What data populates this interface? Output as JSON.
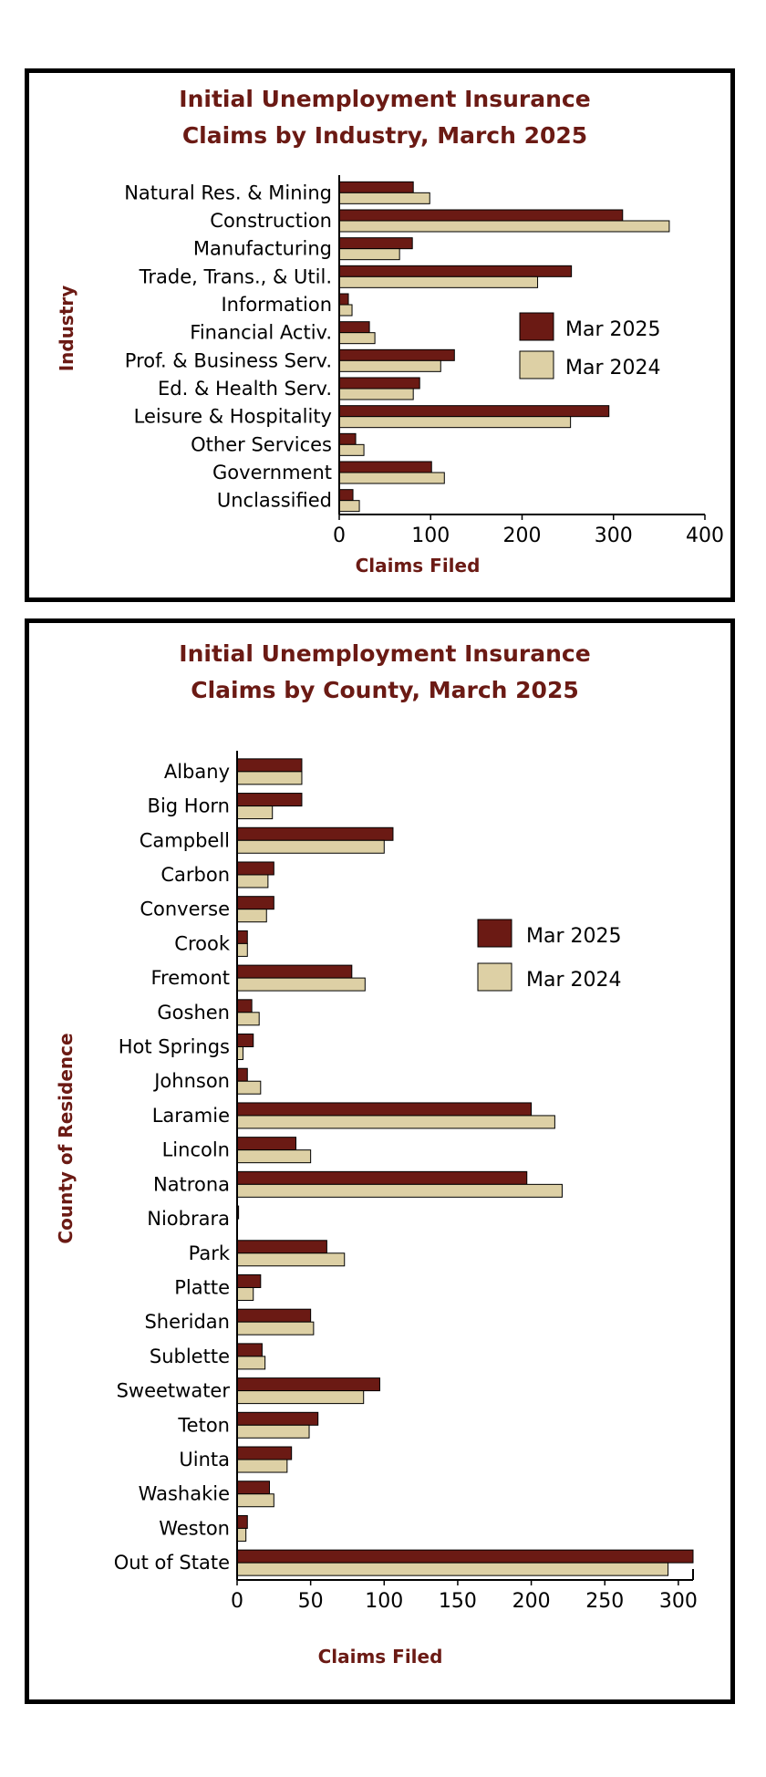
{
  "colors": {
    "mar2025": "#6b1a14",
    "mar2024": "#ddd0a5",
    "title": "#6b1a14",
    "axisTitle": "#6b1a14"
  },
  "chart_data": [
    {
      "type": "bar",
      "orientation": "horizontal",
      "title_lines": [
        "Initial Unemployment Insurance",
        "Claims by Industry, March 2025"
      ],
      "xlabel": "Claims Filed",
      "ylabel": "Industry",
      "xlim": [
        0,
        400
      ],
      "xticks": [
        0,
        100,
        200,
        300,
        400
      ],
      "legend_position": "right",
      "categories": [
        "Natural Res. & Mining",
        "Construction",
        "Manufacturing",
        "Trade, Trans., & Util.",
        "Information",
        "Financial Activ.",
        "Prof. & Business Serv.",
        "Ed. & Health Serv.",
        "Leisure & Hospitality",
        "Other Services",
        "Government",
        "Unclassified"
      ],
      "series": [
        {
          "name": "Mar 2025",
          "values": [
            81,
            310,
            80,
            254,
            10,
            33,
            126,
            88,
            295,
            18,
            101,
            15
          ]
        },
        {
          "name": "Mar 2024",
          "values": [
            99,
            361,
            66,
            217,
            14,
            39,
            111,
            81,
            253,
            27,
            115,
            22
          ]
        }
      ]
    },
    {
      "type": "bar",
      "orientation": "horizontal",
      "title_lines": [
        "Initial Unemployment Insurance",
        "Claims by County, March 2025"
      ],
      "xlabel": "Claims Filed",
      "ylabel": "County of Residence",
      "xlim": [
        0,
        310
      ],
      "xticks": [
        0,
        50,
        100,
        150,
        200,
        250,
        300
      ],
      "legend_position": "right",
      "categories": [
        "Albany",
        "Big Horn",
        "Campbell",
        "Carbon",
        "Converse",
        "Crook",
        "Fremont",
        "Goshen",
        "Hot Springs",
        "Johnson",
        "Laramie",
        "Lincoln",
        "Natrona",
        "Niobrara",
        "Park",
        "Platte",
        "Sheridan",
        "Sublette",
        "Sweetwater",
        "Teton",
        "Uinta",
        "Washakie",
        "Weston",
        "Out of State"
      ],
      "series": [
        {
          "name": "Mar 2025",
          "values": [
            44,
            44,
            106,
            25,
            25,
            7,
            78,
            10,
            11,
            7,
            200,
            40,
            197,
            1,
            61,
            16,
            50,
            17,
            97,
            55,
            37,
            22,
            7,
            310
          ]
        },
        {
          "name": "Mar 2024",
          "values": [
            44,
            24,
            100,
            21,
            20,
            7,
            87,
            15,
            4,
            16,
            216,
            50,
            221,
            0,
            73,
            11,
            52,
            19,
            86,
            49,
            34,
            25,
            6,
            293
          ]
        }
      ]
    }
  ]
}
